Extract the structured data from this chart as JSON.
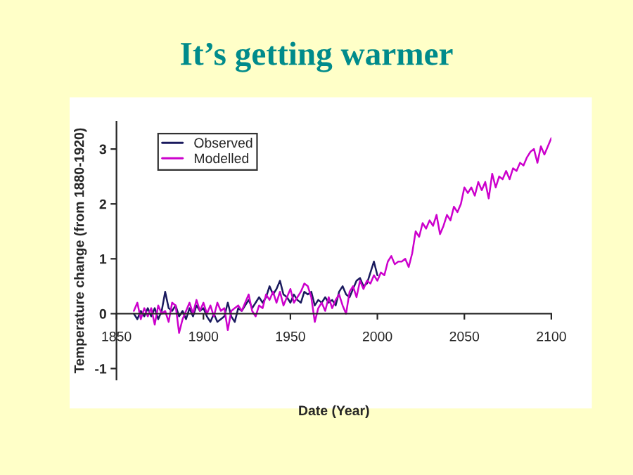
{
  "chart_data": {
    "type": "line",
    "title": "It’s getting warmer",
    "xlabel": "Date (Year)",
    "ylabel": "Temperature change (from 1880-1920)",
    "xlim": [
      1850,
      2100
    ],
    "xticks": [
      1850,
      1900,
      1950,
      2000,
      2050,
      2100
    ],
    "ylim": [
      -1.2,
      3.5
    ],
    "yticks": [
      -1,
      0,
      1,
      2,
      3
    ],
    "grid": false,
    "legend": "top left",
    "series": [
      {
        "name": "Observed",
        "color": "#1a1a5e",
        "x": [
          1860,
          1862,
          1864,
          1866,
          1868,
          1870,
          1872,
          1874,
          1876,
          1878,
          1880,
          1882,
          1884,
          1886,
          1888,
          1890,
          1892,
          1894,
          1896,
          1898,
          1900,
          1902,
          1904,
          1906,
          1908,
          1910,
          1912,
          1914,
          1916,
          1918,
          1920,
          1922,
          1924,
          1926,
          1928,
          1930,
          1932,
          1934,
          1936,
          1938,
          1940,
          1942,
          1944,
          1946,
          1948,
          1950,
          1952,
          1954,
          1956,
          1958,
          1960,
          1962,
          1964,
          1966,
          1968,
          1970,
          1972,
          1974,
          1976,
          1978,
          1980,
          1982,
          1984,
          1986,
          1988,
          1990,
          1992,
          1994,
          1996,
          1998,
          2000
        ],
        "values": [
          0,
          -0.1,
          0.05,
          -0.05,
          0.1,
          -0.05,
          0.1,
          -0.1,
          0.05,
          0.4,
          0.1,
          0.05,
          0.15,
          -0.05,
          0.05,
          -0.1,
          0.1,
          -0.05,
          0.15,
          0.05,
          0.1,
          -0.05,
          -0.15,
          0,
          -0.15,
          -0.1,
          -0.05,
          0.2,
          -0.05,
          -0.15,
          0.1,
          0.05,
          0.15,
          0.25,
          0.1,
          0.2,
          0.3,
          0.2,
          0.3,
          0.5,
          0.35,
          0.45,
          0.6,
          0.35,
          0.3,
          0.2,
          0.35,
          0.25,
          0.2,
          0.4,
          0.35,
          0.4,
          0.15,
          0.25,
          0.2,
          0.3,
          0.2,
          0.25,
          0.15,
          0.4,
          0.5,
          0.35,
          0.3,
          0.45,
          0.6,
          0.65,
          0.5,
          0.55,
          0.75,
          0.95,
          0.7
        ]
      },
      {
        "name": "Modelled",
        "color": "#cc00cc",
        "x": [
          1860,
          1862,
          1864,
          1866,
          1868,
          1870,
          1872,
          1874,
          1876,
          1878,
          1880,
          1882,
          1884,
          1886,
          1888,
          1890,
          1892,
          1894,
          1896,
          1898,
          1900,
          1902,
          1904,
          1906,
          1908,
          1910,
          1912,
          1914,
          1916,
          1918,
          1920,
          1922,
          1924,
          1926,
          1928,
          1930,
          1932,
          1934,
          1936,
          1938,
          1940,
          1942,
          1944,
          1946,
          1948,
          1950,
          1952,
          1954,
          1956,
          1958,
          1960,
          1962,
          1964,
          1966,
          1968,
          1970,
          1972,
          1974,
          1976,
          1978,
          1980,
          1982,
          1984,
          1986,
          1988,
          1990,
          1992,
          1994,
          1996,
          1998,
          2000,
          2002,
          2004,
          2006,
          2008,
          2010,
          2012,
          2014,
          2016,
          2018,
          2020,
          2022,
          2024,
          2026,
          2028,
          2030,
          2032,
          2034,
          2036,
          2038,
          2040,
          2042,
          2044,
          2046,
          2048,
          2050,
          2052,
          2054,
          2056,
          2058,
          2060,
          2062,
          2064,
          2066,
          2068,
          2070,
          2072,
          2074,
          2076,
          2078,
          2080,
          2082,
          2084,
          2086,
          2088,
          2090,
          2092,
          2094,
          2096,
          2098,
          2100
        ],
        "values": [
          0.05,
          0.2,
          -0.1,
          0.1,
          -0.05,
          0.1,
          -0.2,
          0.15,
          0,
          0.05,
          -0.15,
          0.2,
          0.15,
          -0.35,
          -0.1,
          0.05,
          0.2,
          0,
          0.25,
          0.05,
          0.2,
          0,
          0.15,
          -0.05,
          0.2,
          0.05,
          0.1,
          -0.3,
          0.05,
          0.1,
          0.15,
          0.05,
          0.2,
          0.35,
          0.05,
          -0.05,
          0.15,
          0.1,
          0.35,
          0.25,
          0.4,
          0.2,
          0.4,
          0.15,
          0.3,
          0.45,
          0.2,
          0.3,
          0.4,
          0.55,
          0.5,
          0.3,
          -0.15,
          0.1,
          0.2,
          0.05,
          0.3,
          0.1,
          0.25,
          0.35,
          0.15,
          0,
          0.4,
          0.5,
          0.3,
          0.6,
          0.45,
          0.6,
          0.55,
          0.7,
          0.6,
          0.75,
          0.7,
          0.95,
          1.05,
          0.9,
          0.95,
          0.95,
          1.0,
          0.85,
          1.1,
          1.5,
          1.4,
          1.65,
          1.55,
          1.7,
          1.6,
          1.8,
          1.45,
          1.6,
          1.8,
          1.7,
          1.95,
          1.85,
          2.0,
          2.3,
          2.2,
          2.3,
          2.15,
          2.4,
          2.25,
          2.4,
          2.1,
          2.55,
          2.3,
          2.5,
          2.45,
          2.6,
          2.45,
          2.65,
          2.6,
          2.75,
          2.7,
          2.85,
          2.95,
          3.0,
          2.75,
          3.05,
          2.9,
          3.05,
          3.2
        ]
      }
    ]
  }
}
